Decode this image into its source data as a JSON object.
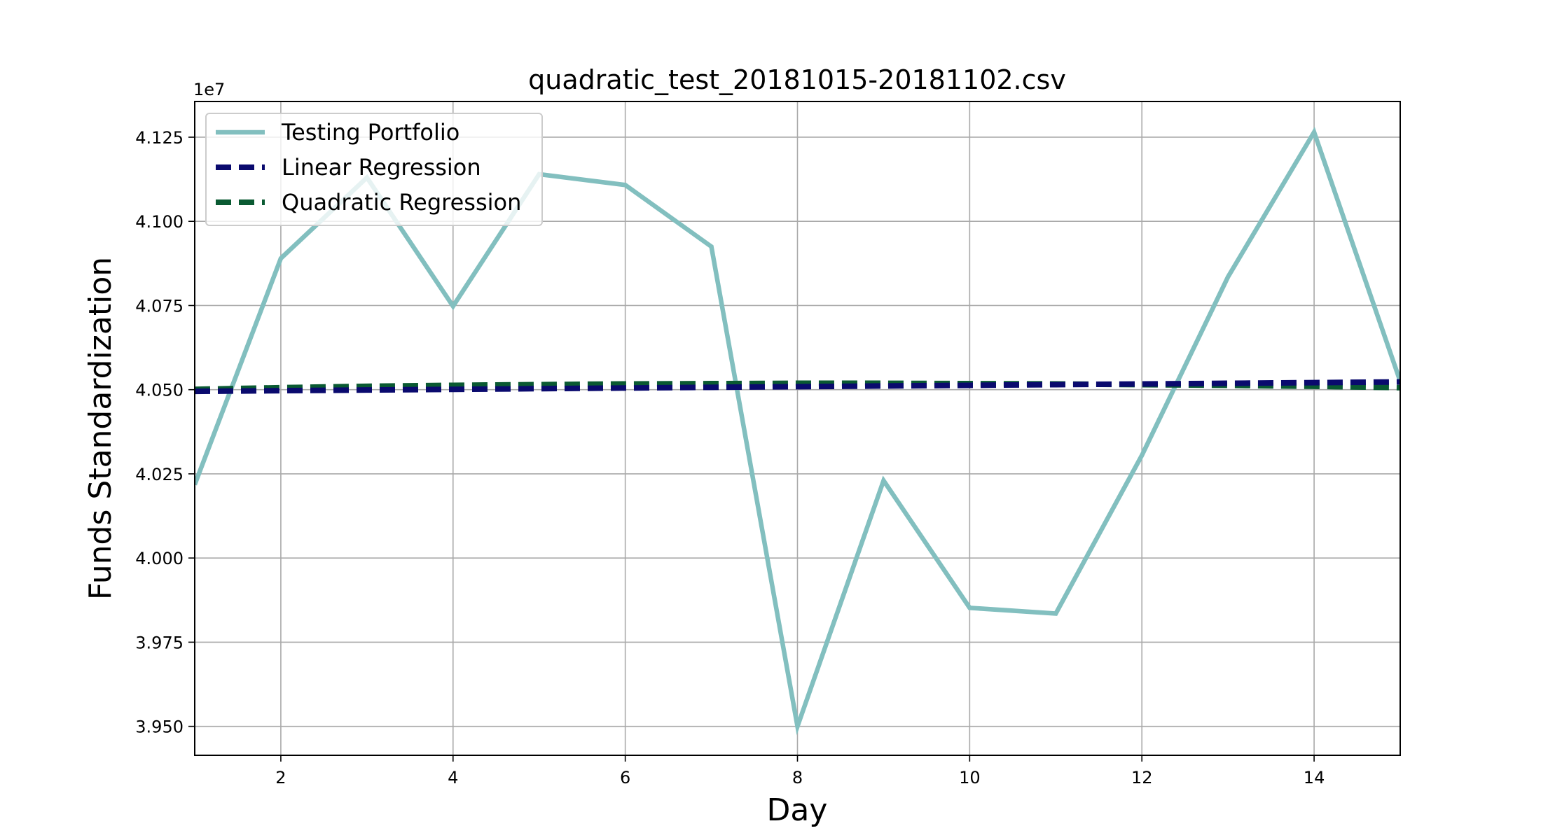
{
  "chart_data": {
    "type": "line",
    "title": "quadratic_test_20181015-20181102.csv",
    "xlabel": "Day",
    "ylabel": "Funds Standardization",
    "offset_label": "1e7",
    "xlim": [
      1,
      15
    ],
    "ylim": [
      3.9414,
      4.1356
    ],
    "x_ticks": [
      2,
      4,
      6,
      8,
      10,
      12,
      14
    ],
    "y_ticks": [
      3.95,
      3.975,
      4.0,
      4.025,
      4.05,
      4.075,
      4.1,
      4.125
    ],
    "y_tick_labels": [
      "3.950",
      "3.975",
      "4.000",
      "4.025",
      "4.050",
      "4.075",
      "4.100",
      "4.125"
    ],
    "grid": true,
    "legend_position": "top-left",
    "x": [
      1,
      2,
      3,
      4,
      5,
      6,
      7,
      8,
      9,
      10,
      11,
      12,
      13,
      14,
      15
    ],
    "series": [
      {
        "name": "Testing Portfolio",
        "style": "solid",
        "color": "#82BFBF",
        "values": [
          4.0218,
          4.089,
          4.113,
          4.0748,
          4.114,
          4.1108,
          4.0925,
          3.95,
          4.023,
          3.9852,
          3.9835,
          4.0305,
          4.0835,
          4.1265,
          4.0525
        ]
      },
      {
        "name": "Linear Regression",
        "style": "dashed",
        "color": "#0A0A6E",
        "values": [
          4.0495,
          4.0497,
          4.0499,
          4.0501,
          4.0503,
          4.0505,
          4.0507,
          4.0509,
          4.0511,
          4.0513,
          4.0515,
          4.0517,
          4.0519,
          4.0521,
          4.0523
        ]
      },
      {
        "name": "Quadratic Regression",
        "style": "dashed",
        "color": "#0A5A32",
        "values": [
          4.0501,
          4.0506,
          4.051,
          4.0513,
          4.0515,
          4.0517,
          4.0518,
          4.0519,
          4.0519,
          4.0518,
          4.0517,
          4.0515,
          4.0513,
          4.051,
          4.0506
        ]
      }
    ]
  }
}
